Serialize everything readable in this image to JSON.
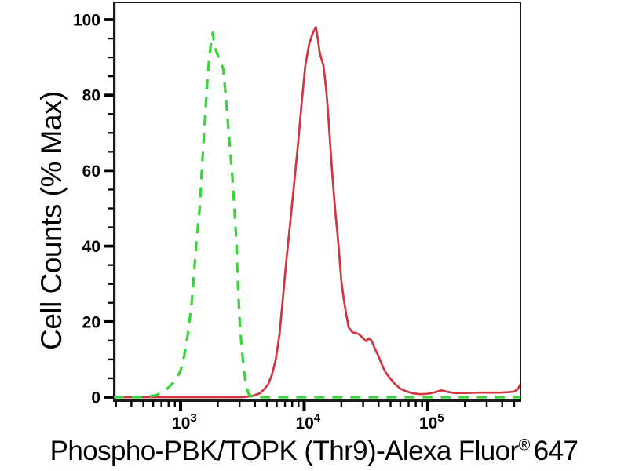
{
  "chart_data": {
    "type": "line",
    "subtype": "flow-cytometry-histogram-overlay",
    "title": "",
    "ylabel": "Cell Counts (% Max)",
    "xlabel": {
      "main": "Phospho-PBK/TOPK (Thr9)-Alexa Fluor",
      "sup": "®",
      "suffix": "647"
    },
    "background": "#ffffff",
    "frame_color": "#1a1a1a",
    "grid": "off",
    "legend": "none",
    "y_axis": {
      "min": 0,
      "max": 100,
      "major_step": 20,
      "minor_step": 5,
      "major_ticks": [
        {
          "value": 0,
          "label": "0"
        },
        {
          "value": 20,
          "label": "20"
        },
        {
          "value": 40,
          "label": "40"
        },
        {
          "value": 60,
          "label": "60"
        },
        {
          "value": 80,
          "label": "80"
        },
        {
          "value": 100,
          "label": "100"
        }
      ]
    },
    "x_axis": {
      "scale": "log10",
      "min_log": 2.46,
      "max_log": 5.75,
      "major_ticks": [
        {
          "log": 3,
          "label": "10",
          "exp": "3"
        },
        {
          "log": 4,
          "label": "10",
          "exp": "4"
        },
        {
          "log": 5,
          "label": "10",
          "exp": "5"
        }
      ]
    },
    "series": [
      {
        "name": "sample-red-solid",
        "color": "#d1353f",
        "dash": null,
        "width": 2.7,
        "peak": {
          "x_log": 4.1,
          "pct": 98
        },
        "points_log_pct": [
          [
            2.46,
            0
          ],
          [
            2.9,
            0
          ],
          [
            3.3,
            0
          ],
          [
            3.5,
            0
          ],
          [
            3.58,
            0.3
          ],
          [
            3.64,
            1
          ],
          [
            3.68,
            2.2
          ],
          [
            3.71,
            3.5
          ],
          [
            3.74,
            6
          ],
          [
            3.77,
            10
          ],
          [
            3.8,
            16.5
          ],
          [
            3.83,
            27
          ],
          [
            3.86,
            37.5
          ],
          [
            3.89,
            47
          ],
          [
            3.92,
            57
          ],
          [
            3.95,
            67
          ],
          [
            3.98,
            78
          ],
          [
            4.01,
            88
          ],
          [
            4.04,
            93.5
          ],
          [
            4.07,
            96.5
          ],
          [
            4.095,
            98
          ],
          [
            4.11,
            95
          ],
          [
            4.125,
            91.5
          ],
          [
            4.14,
            89.5
          ],
          [
            4.155,
            88
          ],
          [
            4.17,
            84
          ],
          [
            4.185,
            79
          ],
          [
            4.2,
            72
          ],
          [
            4.215,
            65
          ],
          [
            4.23,
            58
          ],
          [
            4.25,
            50
          ],
          [
            4.27,
            43
          ],
          [
            4.285,
            37.5
          ],
          [
            4.3,
            31
          ],
          [
            4.32,
            26
          ],
          [
            4.34,
            22
          ],
          [
            4.36,
            18.5
          ],
          [
            4.39,
            17.2
          ],
          [
            4.42,
            17
          ],
          [
            4.45,
            16.5
          ],
          [
            4.48,
            15.5
          ],
          [
            4.505,
            14.8
          ],
          [
            4.52,
            15.6
          ],
          [
            4.545,
            15
          ],
          [
            4.57,
            13
          ],
          [
            4.6,
            11
          ],
          [
            4.63,
            8.5
          ],
          [
            4.66,
            6.5
          ],
          [
            4.7,
            4.8
          ],
          [
            4.74,
            3.3
          ],
          [
            4.78,
            2.2
          ],
          [
            4.83,
            1.5
          ],
          [
            4.88,
            1
          ],
          [
            4.94,
            0.8
          ],
          [
            5.0,
            0.9
          ],
          [
            5.06,
            1.3
          ],
          [
            5.11,
            1.8
          ],
          [
            5.16,
            1.4
          ],
          [
            5.22,
            1.1
          ],
          [
            5.3,
            1.1
          ],
          [
            5.4,
            1.2
          ],
          [
            5.5,
            1.2
          ],
          [
            5.58,
            1.2
          ],
          [
            5.65,
            1.3
          ],
          [
            5.7,
            1.5
          ],
          [
            5.73,
            2.2
          ],
          [
            5.745,
            3.2
          ],
          [
            5.75,
            3.4
          ]
        ]
      },
      {
        "name": "control-green-dashed",
        "color": "#3bd43b",
        "dash": [
          13,
          10
        ],
        "width": 3.3,
        "peak": {
          "x_log": 3.26,
          "pct": 96.5
        },
        "points_log_pct": [
          [
            2.46,
            0
          ],
          [
            2.6,
            0
          ],
          [
            2.72,
            0
          ],
          [
            2.8,
            0.5
          ],
          [
            2.85,
            1.2
          ],
          [
            2.9,
            2.5
          ],
          [
            2.96,
            4.5
          ],
          [
            3.0,
            7
          ],
          [
            3.03,
            11
          ],
          [
            3.06,
            17
          ],
          [
            3.09,
            25
          ],
          [
            3.11,
            33
          ],
          [
            3.13,
            42
          ],
          [
            3.155,
            50
          ],
          [
            3.17,
            59
          ],
          [
            3.185,
            67
          ],
          [
            3.2,
            75
          ],
          [
            3.215,
            83
          ],
          [
            3.23,
            89
          ],
          [
            3.245,
            93.5
          ],
          [
            3.26,
            96.5
          ],
          [
            3.275,
            93
          ],
          [
            3.29,
            91.5
          ],
          [
            3.32,
            89
          ],
          [
            3.345,
            87
          ],
          [
            3.365,
            80
          ],
          [
            3.385,
            72
          ],
          [
            3.4,
            66
          ],
          [
            3.42,
            58
          ],
          [
            3.435,
            50
          ],
          [
            3.45,
            42
          ],
          [
            3.46,
            33
          ],
          [
            3.47,
            26
          ],
          [
            3.48,
            19
          ],
          [
            3.495,
            13
          ],
          [
            3.51,
            8
          ],
          [
            3.53,
            3
          ],
          [
            3.55,
            1
          ],
          [
            3.57,
            0.3
          ],
          [
            3.6,
            0
          ],
          [
            3.8,
            0
          ],
          [
            4.2,
            0
          ],
          [
            4.6,
            0
          ],
          [
            5.0,
            0
          ],
          [
            5.4,
            0
          ],
          [
            5.75,
            0
          ]
        ]
      }
    ]
  }
}
